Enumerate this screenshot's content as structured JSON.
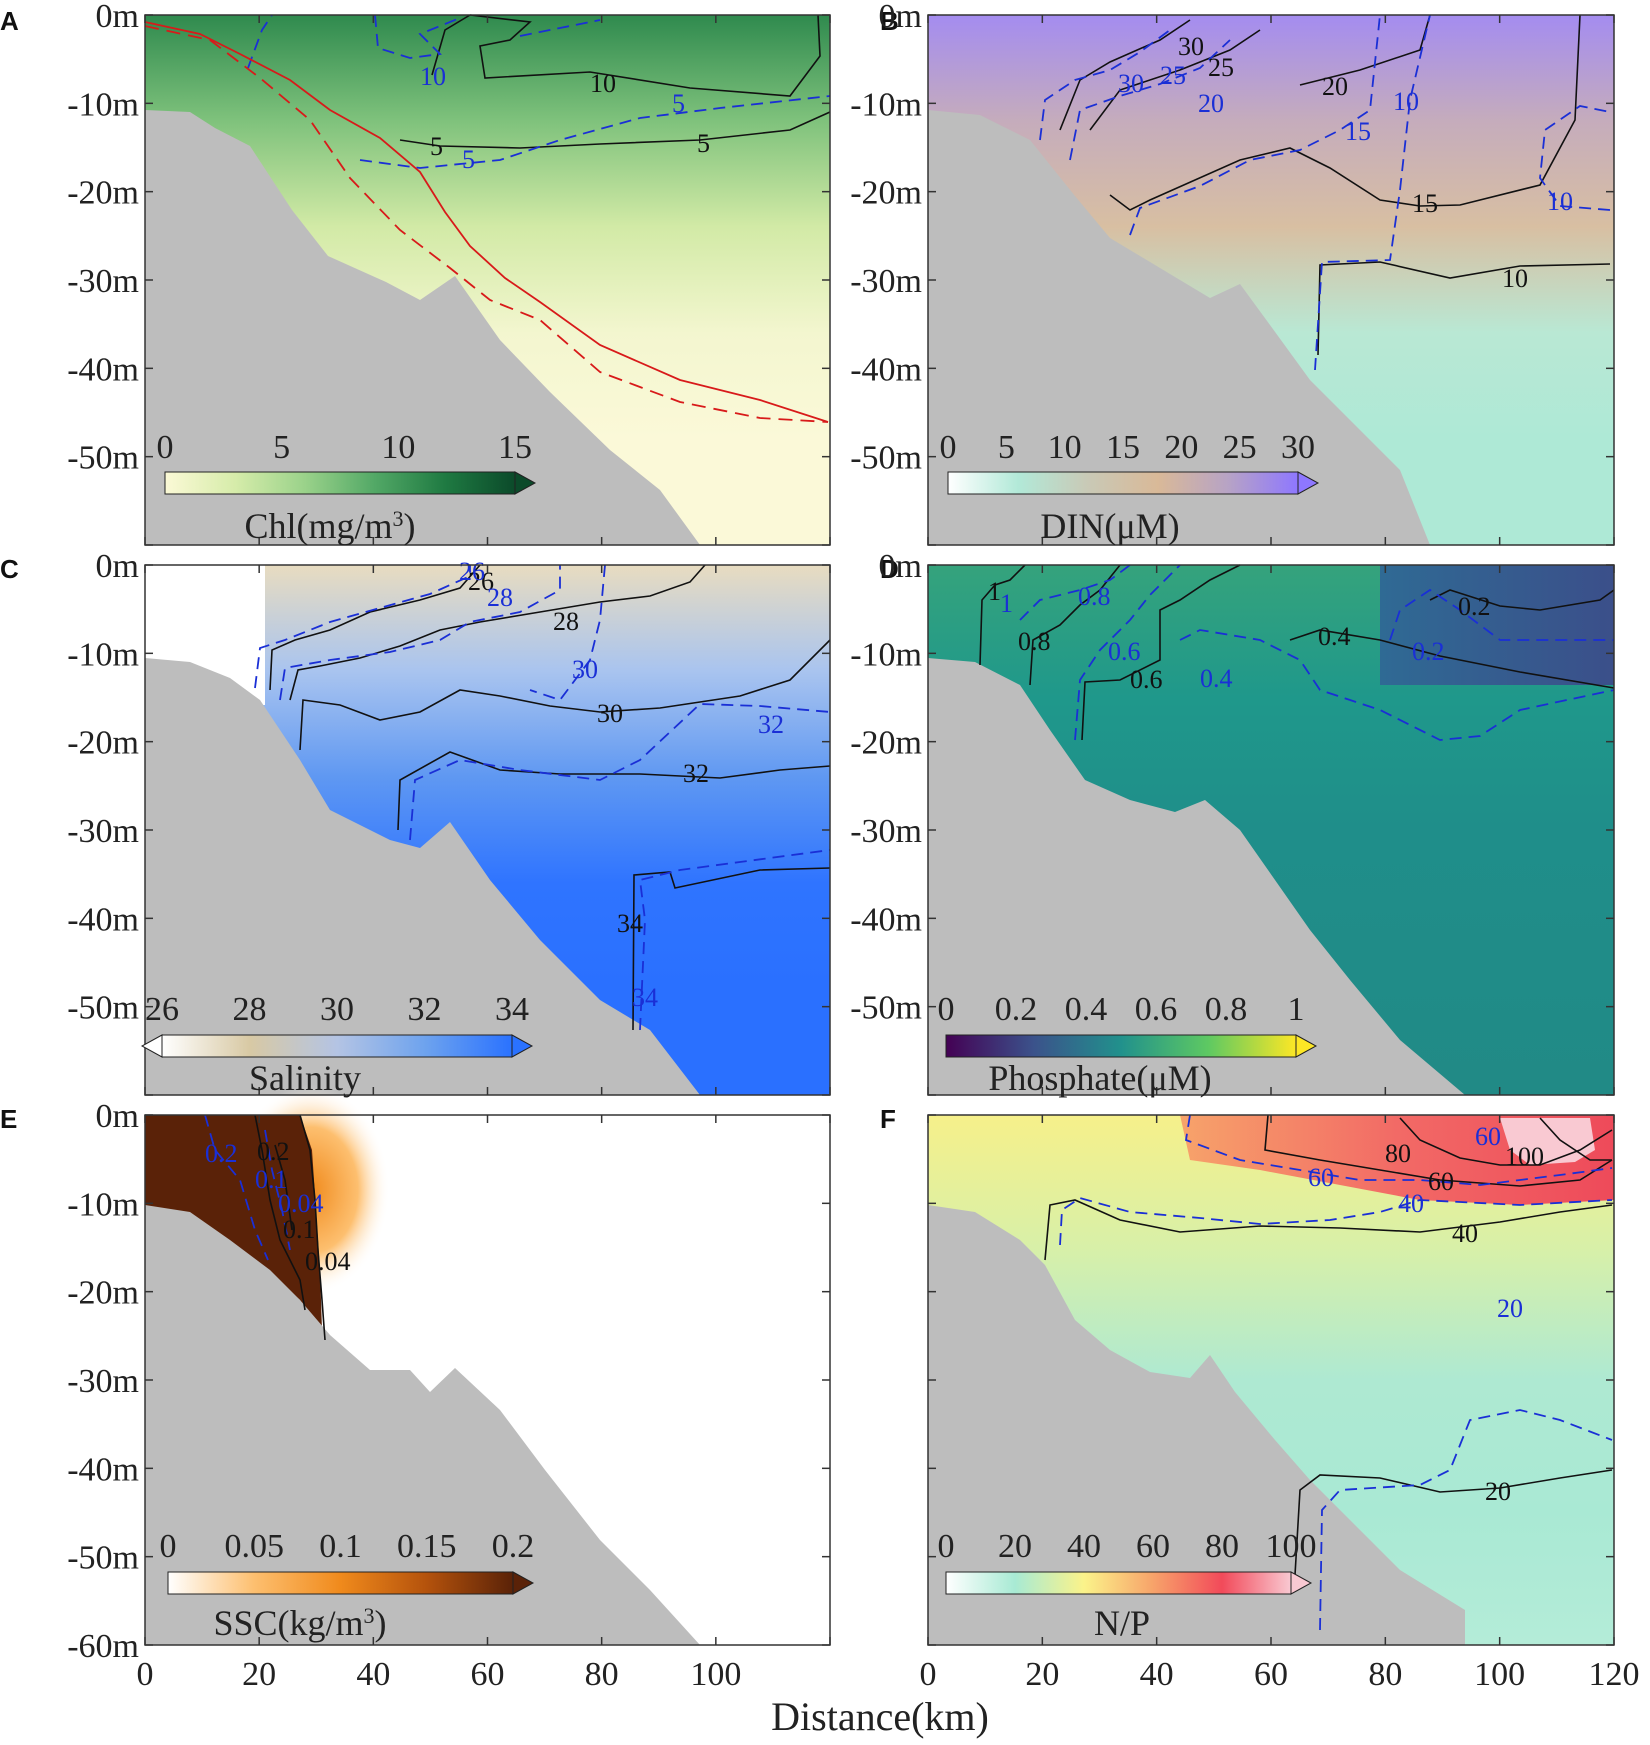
{
  "figure": {
    "xlabel": "Distance(km)"
  },
  "chart_data": [
    {
      "panel": "A",
      "type": "heatmap",
      "colorbar": {
        "label": "Chl",
        "unit": "(mg/m",
        "unit_sup": "3",
        "unit_close": ")",
        "ticks": [
          "0",
          "5",
          "10",
          "15"
        ],
        "range": [
          0,
          15
        ],
        "extend": "max",
        "colors": [
          "#fbf9d6",
          "#d6ecaa",
          "#9ad28a",
          "#52a866",
          "#1f7a42",
          "#0b4a2a"
        ]
      },
      "x_range": [
        0,
        120
      ],
      "y_range": [
        -60,
        0
      ],
      "y_ticks": [
        "0m",
        "-10m",
        "-20m",
        "-30m",
        "-40m",
        "-50m"
      ],
      "contour_labels_black": [
        "10",
        "5",
        "5"
      ],
      "contour_labels_blue": [
        "10",
        "5",
        "5"
      ],
      "has_red_lines": true
    },
    {
      "panel": "B",
      "type": "heatmap",
      "colorbar": {
        "label": "DIN",
        "unit": "(μM)",
        "ticks": [
          "0",
          "5",
          "10",
          "15",
          "20",
          "25",
          "30"
        ],
        "range": [
          0,
          30
        ],
        "extend": "max",
        "colors": [
          "#ffffff",
          "#b2e9d8",
          "#c9c9b6",
          "#d9b998",
          "#b7a3c5",
          "#8e77ff"
        ]
      },
      "x_range": [
        0,
        120
      ],
      "y_range": [
        -60,
        0
      ],
      "y_ticks": [
        "0m",
        "-10m",
        "-20m",
        "-30m",
        "-40m",
        "-50m"
      ],
      "contour_labels_black": [
        "30",
        "25",
        "20",
        "15",
        "10"
      ],
      "contour_labels_blue": [
        "30",
        "25",
        "20",
        "15",
        "10",
        "10"
      ]
    },
    {
      "panel": "C",
      "type": "heatmap",
      "colorbar": {
        "label": "Salinity",
        "ticks": [
          "26",
          "28",
          "30",
          "32",
          "34"
        ],
        "range": [
          26,
          34
        ],
        "extend": "both",
        "colors": [
          "#ffffff",
          "#d8c9a4",
          "#b4c4e4",
          "#6ea3ee",
          "#2a72ff"
        ]
      },
      "x_range": [
        0,
        120
      ],
      "y_range": [
        -60,
        0
      ],
      "y_ticks": [
        "0m",
        "-10m",
        "-20m",
        "-30m",
        "-40m",
        "-50m"
      ],
      "contour_labels_black": [
        "26",
        "28",
        "30",
        "32",
        "34"
      ],
      "contour_labels_blue": [
        "26",
        "28",
        "30",
        "32",
        "34"
      ]
    },
    {
      "panel": "D",
      "type": "heatmap",
      "colorbar": {
        "label": "Phosphate",
        "unit": "(μM)",
        "ticks": [
          "0",
          "0.2",
          "0.4",
          "0.6",
          "0.8",
          "1"
        ],
        "range": [
          0,
          1
        ],
        "extend": "max",
        "colors": [
          "#440154",
          "#3b528b",
          "#21918c",
          "#5ec962",
          "#fde725"
        ]
      },
      "x_range": [
        0,
        120
      ],
      "y_range": [
        -60,
        0
      ],
      "y_ticks": [
        "0m",
        "-10m",
        "-20m",
        "-30m",
        "-40m",
        "-50m"
      ],
      "contour_labels_black": [
        "1",
        "0.8",
        "0.6",
        "0.4",
        "0.2"
      ],
      "contour_labels_blue": [
        "1",
        "0.8",
        "0.6",
        "0.4",
        "0.2"
      ]
    },
    {
      "panel": "E",
      "type": "heatmap",
      "colorbar": {
        "label": "SSC",
        "unit": "(kg/m",
        "unit_sup": "3",
        "unit_close": ")",
        "ticks": [
          "0",
          "0.05",
          "0.1",
          "0.15",
          "0.2"
        ],
        "range": [
          0,
          0.2
        ],
        "extend": "max",
        "colors": [
          "#ffffff",
          "#fdbf6f",
          "#f08a1c",
          "#b4520c",
          "#5a2208"
        ]
      },
      "x_range": [
        0,
        120
      ],
      "y_range": [
        -60,
        0
      ],
      "y_ticks": [
        "0m",
        "-10m",
        "-20m",
        "-30m",
        "-40m",
        "-50m",
        "-60m"
      ],
      "x_ticks": [
        "0",
        "20",
        "40",
        "60",
        "80",
        "100"
      ],
      "contour_labels_black": [
        "0.2",
        "0.1",
        "0.04"
      ],
      "contour_labels_blue": [
        "0.2",
        "0.1",
        "0.04"
      ]
    },
    {
      "panel": "F",
      "type": "heatmap",
      "colorbar": {
        "label": "N/P",
        "ticks": [
          "0",
          "20",
          "40",
          "60",
          "80",
          "100"
        ],
        "range": [
          0,
          100
        ],
        "extend": "max",
        "colors": [
          "#ffffff",
          "#a8ead4",
          "#fbf38a",
          "#f7a36a",
          "#f24a5a",
          "#f9c9d2"
        ]
      },
      "x_range": [
        0,
        120
      ],
      "y_range": [
        -60,
        0
      ],
      "x_ticks": [
        "0",
        "20",
        "40",
        "60",
        "80",
        "100",
        "120"
      ],
      "contour_labels_black": [
        "100",
        "80",
        "60",
        "40",
        "20"
      ],
      "contour_labels_blue": [
        "60",
        "60",
        "40",
        "20"
      ]
    }
  ]
}
